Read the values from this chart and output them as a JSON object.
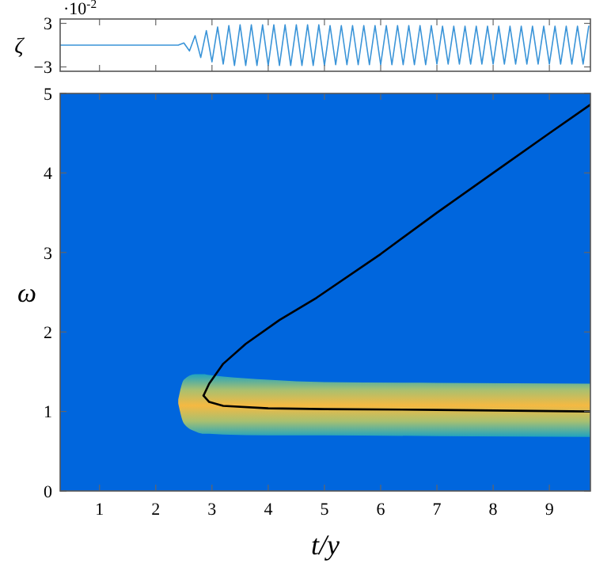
{
  "chart_data": [
    {
      "type": "line",
      "ylabel": "ζ",
      "xlim": [
        0.3,
        9.73
      ],
      "ylim": [
        -3.6,
        3.6
      ],
      "xticks": [
        1,
        2,
        3,
        4,
        5,
        6,
        7,
        8,
        9
      ],
      "yticks": [
        3,
        {
          "value": -3,
          "label": "−3"
        }
      ],
      "tick_labels": "y",
      "grid": false,
      "annotations": [
        "·10$^{-2}$"
      ],
      "series": [
        {
          "color": "#3a94d8",
          "x": [
            0.3,
            2.4,
            2.5,
            2.6,
            2.7,
            2.8,
            2.9,
            3.0,
            3.1,
            3.2,
            3.3,
            3.4,
            3.5,
            3.6,
            3.7,
            3.8,
            3.9,
            4.0,
            4.1,
            4.2,
            4.3,
            4.4,
            4.5,
            4.6,
            4.7,
            4.8,
            4.9,
            5.0,
            5.1,
            5.2,
            5.3,
            5.4,
            5.5,
            5.6,
            5.7,
            5.8,
            5.9,
            6.0,
            6.1,
            6.2,
            6.3,
            6.4,
            6.5,
            6.6,
            6.7,
            6.8,
            6.9,
            7.0,
            7.1,
            7.2,
            7.3,
            7.4,
            7.5,
            7.6,
            7.7,
            7.8,
            7.9,
            8.0,
            8.1,
            8.2,
            8.3,
            8.4,
            8.5,
            8.6,
            8.7,
            8.8,
            8.9,
            9.0,
            9.1,
            9.2,
            9.3,
            9.4,
            9.5,
            9.6,
            9.7
          ],
          "values": [
            0,
            0,
            0.3,
            -0.8,
            1.3,
            -1.7,
            2.0,
            -2.3,
            2.5,
            -2.6,
            2.7,
            -2.8,
            2.8,
            -2.8,
            2.8,
            -2.8,
            2.8,
            -2.8,
            2.8,
            -2.8,
            2.8,
            -2.8,
            2.8,
            -2.8,
            2.8,
            -2.8,
            2.8,
            -2.8,
            2.7,
            -2.7,
            2.7,
            -2.7,
            2.7,
            -2.7,
            2.7,
            -2.7,
            2.7,
            -2.7,
            2.7,
            -2.7,
            2.7,
            -2.7,
            2.7,
            -2.7,
            2.7,
            -2.7,
            2.7,
            -2.6,
            2.6,
            -2.6,
            2.6,
            -2.6,
            2.6,
            -2.6,
            2.6,
            -2.6,
            2.6,
            -2.6,
            2.6,
            -2.6,
            2.6,
            -2.6,
            2.6,
            -2.6,
            2.6,
            -2.6,
            2.6,
            -2.6,
            2.6,
            -2.6,
            2.6,
            -2.6,
            2.6,
            -2.6,
            2.6
          ]
        }
      ]
    },
    {
      "type": "line",
      "xlabel": "t/y",
      "ylabel": "ω",
      "xlim": [
        0.3,
        9.73
      ],
      "ylim": [
        0,
        5
      ],
      "xticks": [
        1,
        2,
        3,
        4,
        5,
        6,
        7,
        8,
        9
      ],
      "yticks": [
        0,
        1,
        2,
        3,
        4,
        5
      ],
      "grid": false,
      "series": [
        {
          "color": "#000000",
          "x": [
            2.85,
            2.95,
            3.2,
            3.6,
            4.2,
            4.86,
            6,
            7,
            8,
            9,
            9.73
          ],
          "values": [
            1.2,
            1.35,
            1.6,
            1.85,
            2.15,
            2.43,
            2.98,
            3.5,
            4.0,
            4.5,
            4.86
          ]
        },
        {
          "color": "#000000",
          "x": [
            2.4,
            2.5,
            2.7,
            2.85,
            2.95,
            3.2,
            4,
            5,
            7,
            9.73
          ],
          "values": [
            null,
            null,
            null,
            1.2,
            1.12,
            1.07,
            1.04,
            1.03,
            1.02,
            1.0
          ],
          "lower": [
            1.1,
            0.85,
            0.75,
            0.72,
            0.72,
            0.71,
            0.7,
            0.7,
            0.69,
            0.68
          ],
          "upper": [
            1.15,
            1.4,
            1.47,
            1.47,
            1.46,
            1.44,
            1.4,
            1.37,
            1.36,
            1.35
          ]
        }
      ]
    }
  ]
}
